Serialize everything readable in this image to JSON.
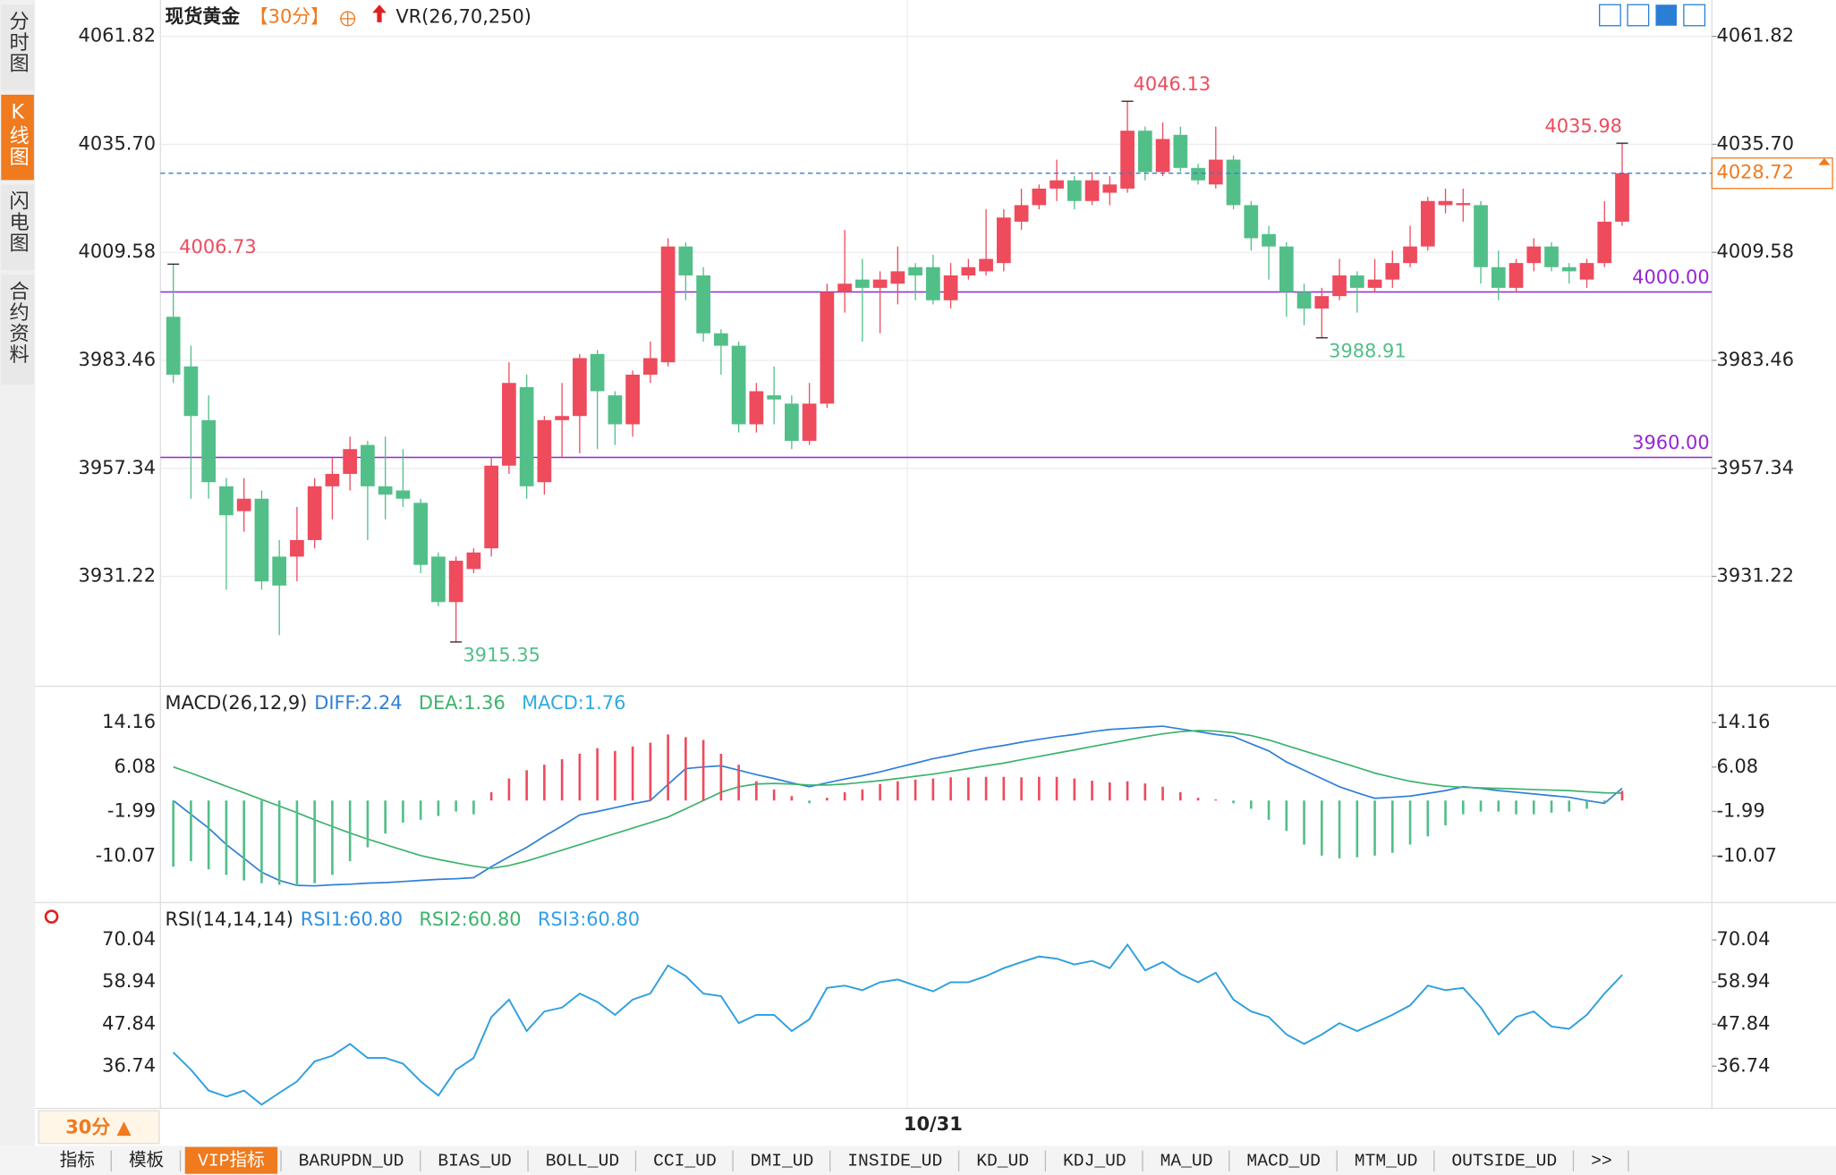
{
  "chart_data": [
    {
      "type": "candlestick",
      "title": "现货黄金",
      "period": "【30分】",
      "indicator": "VR(26,70,250)",
      "categories": [
        null,
        null,
        null,
        null,
        null,
        null,
        null,
        null,
        null,
        null,
        null,
        null,
        null,
        null,
        null,
        null,
        null,
        null,
        null,
        null,
        null,
        null,
        null,
        null,
        null,
        null,
        null,
        null,
        null,
        null,
        null,
        null,
        null,
        null,
        null,
        null,
        null,
        null,
        null,
        null,
        null,
        null,
        null,
        "10/31",
        null,
        null,
        null,
        null,
        null,
        null,
        null,
        null,
        null,
        null,
        null,
        null,
        null,
        null,
        null,
        null,
        null,
        null,
        null,
        null,
        null,
        null,
        null,
        null,
        null,
        null,
        null,
        null,
        null,
        null,
        null,
        null,
        null,
        null,
        null,
        null,
        null,
        null,
        null
      ],
      "open": [
        3994,
        3982,
        3969,
        3953,
        3947,
        3950,
        3936,
        3936,
        3940,
        3953,
        3956,
        3963,
        3953,
        3952,
        3949,
        3936,
        3925,
        3933,
        3938,
        3958,
        3977,
        3954,
        3969,
        3970,
        3985,
        3975,
        3968,
        3980,
        3983,
        4011,
        4004,
        3990,
        3987,
        3968,
        3975,
        3973,
        3964,
        3973,
        4000,
        4003,
        4001,
        4002,
        4006,
        4006,
        3998,
        4004,
        4005,
        4007,
        4017,
        4021,
        4025,
        4027,
        4022,
        4024,
        4025,
        4039,
        4029,
        4038,
        4030,
        4026,
        4032,
        4021,
        4014,
        4011,
        4000,
        3996,
        3999,
        4004,
        4001,
        4003,
        4007,
        4011,
        4021,
        4021,
        4021,
        4006,
        4001,
        4007,
        4011,
        4006,
        4003,
        4007,
        4017
      ],
      "high": [
        4006.73,
        3987,
        3975,
        3955,
        3955,
        3952,
        3940,
        3948,
        3955,
        3960,
        3965,
        3964,
        3965,
        3962,
        3950,
        3937,
        3936,
        3938,
        3960,
        3983,
        3980,
        3970,
        3978,
        3985,
        3986,
        3976,
        3981,
        3988,
        4013,
        4012,
        4006,
        3991,
        3988,
        3978,
        3982,
        3975,
        3978,
        4002,
        4015,
        4008,
        4005,
        4011,
        4007,
        4009,
        4007,
        4008,
        4020,
        4020,
        4025,
        4026,
        4032,
        4028,
        4029,
        4028,
        4046.13,
        4040,
        4041,
        4040,
        4031,
        4040,
        4033,
        4022,
        4016,
        4012,
        4002,
        4001,
        4008,
        4005,
        4008,
        4010,
        4016,
        4023,
        4025,
        4025,
        4022,
        4010,
        4008,
        4013,
        4012,
        4007,
        4008,
        4022,
        4035.98
      ],
      "low": [
        3978,
        3950,
        3950,
        3928,
        3942,
        3928,
        3917,
        3930,
        3938,
        3945,
        3952,
        3940,
        3945,
        3948,
        3932,
        3924,
        3915.35,
        3932,
        3936,
        3956,
        3950,
        3951,
        3960,
        3961,
        3962,
        3963,
        3965,
        3978,
        3982,
        3998,
        3988,
        3980,
        3966,
        3966,
        3968,
        3962,
        3963,
        3972,
        3995,
        3988,
        3990,
        3997,
        3998,
        3997,
        3996,
        4003,
        4004,
        4005,
        4015,
        4020,
        4022,
        4020,
        4021,
        4021,
        4024,
        4027,
        4028,
        4029,
        4026,
        4025,
        4020,
        4010,
        4003,
        3994,
        3992,
        3988.91,
        3998,
        3995,
        4000,
        4001,
        4006,
        4010,
        4019,
        4017,
        4002,
        3998,
        4000,
        4005,
        4005,
        4002,
        4001,
        4006,
        4016
      ],
      "close": [
        3980,
        3970,
        3954,
        3946,
        3950,
        3930,
        3929,
        3940,
        3953,
        3956,
        3962,
        3953,
        3951,
        3950,
        3934,
        3925,
        3935,
        3937,
        3958,
        3978,
        3953,
        3969,
        3970,
        3984,
        3976,
        3968,
        3980,
        3984,
        4011,
        4004,
        3990,
        3987,
        3968,
        3976,
        3974,
        3964,
        3973,
        4000,
        4002,
        4001,
        4003,
        4005,
        4004,
        3998,
        4004,
        4006,
        4008,
        4018,
        4021,
        4025,
        4027,
        4022,
        4027,
        4026,
        4039,
        4029,
        4037,
        4030,
        4027,
        4032,
        4021,
        4013,
        4011,
        4000,
        3996,
        3999,
        4004,
        4001,
        4003,
        4007,
        4011,
        4022,
        4022,
        4021.5,
        4006,
        4001,
        4007,
        4011,
        4006,
        4005,
        4007,
        4017,
        4028.72
      ],
      "up_color": "#ee4b5d",
      "down_color": "#52bf88",
      "high_labels": [
        0,
        54,
        82
      ],
      "low_labels": [
        16,
        65
      ],
      "levels": [
        {
          "value": 4000,
          "label": "4000.00"
        },
        {
          "value": 3960,
          "label": "3960.00"
        }
      ],
      "level_color": "#9526d6",
      "last_price_color": "#f07a1e",
      "last_line_color": "#3a7fd5",
      "ylim": [
        3905.2,
        4069.2
      ],
      "yticks": [
        4061.82,
        {
          "value": 4035.7,
          "label": "4035.70"
        },
        4009.58,
        3983.46,
        3957.34,
        3931.22
      ],
      "grid": true
    },
    {
      "type": "line",
      "title": "MACD(26,12,9)",
      "series": [
        {
          "name": "DIFF:2.24",
          "type": "line",
          "color": "#2f7fd8",
          "values": [
            0,
            -2.5,
            -5,
            -8,
            -10.5,
            -13,
            -14.5,
            -15.4,
            -15.5,
            -15.3,
            -15.2,
            -15,
            -14.9,
            -14.7,
            -14.5,
            -14.3,
            -14.2,
            -14,
            -12,
            -10.2,
            -8.5,
            -6.5,
            -4.6,
            -2.6,
            -2,
            -1.3,
            -0.6,
            0,
            2.9,
            5.8,
            6.1,
            6.3,
            5.5,
            4.7,
            4,
            3.2,
            2.5,
            3.2,
            3.9,
            4.5,
            5.2,
            6,
            6.8,
            7.6,
            8.2,
            8.9,
            9.5,
            10,
            10.6,
            11.1,
            11.6,
            12,
            12.5,
            12.9,
            13.1,
            13.3,
            13.5,
            13,
            12.5,
            12,
            11.6,
            10.3,
            9,
            7,
            5.5,
            4,
            2.5,
            1.4,
            0.4,
            0.6,
            0.8,
            1.3,
            1.8,
            2.5,
            2.2,
            1.8,
            1.5,
            1.2,
            0.9,
            0.6,
            0,
            -0.5,
            2.24
          ]
        },
        {
          "name": "DEA:1.36",
          "type": "line",
          "color": "#3cb36b",
          "values": [
            6.1,
            5,
            3.8,
            2.6,
            1.4,
            0.2,
            -1,
            -2.2,
            -3.5,
            -4.7,
            -5.9,
            -7,
            -8,
            -9,
            -10,
            -10.7,
            -11.3,
            -11.9,
            -12.3,
            -11.8,
            -11,
            -10,
            -9,
            -8,
            -7,
            -6,
            -5,
            -4,
            -3,
            -1.5,
            0,
            1.5,
            2.5,
            3,
            3.1,
            3,
            2.8,
            2.8,
            3,
            3.3,
            3.6,
            4,
            4.4,
            4.8,
            5.3,
            5.8,
            6.3,
            6.8,
            7.4,
            8,
            8.6,
            9.2,
            9.8,
            10.4,
            11,
            11.6,
            12.1,
            12.5,
            12.7,
            12.6,
            12.3,
            11.8,
            11,
            10,
            9,
            8,
            7,
            6,
            5,
            4.2,
            3.5,
            3,
            2.6,
            2.4,
            2.3,
            2.2,
            2.1,
            2,
            1.9,
            1.8,
            1.6,
            1.4,
            1.36
          ]
        },
        {
          "name": "MACD:1.76",
          "type": "bar",
          "color": "#33a9e0",
          "up_color": "#ee4b5d",
          "down_color": "#52bf88",
          "values": [
            -12,
            -11,
            -12.5,
            -13.5,
            -14.5,
            -15,
            -15.3,
            -15.5,
            -15,
            -13.5,
            -11,
            -8.5,
            -6,
            -4,
            -3.5,
            -2.8,
            -2,
            -2.5,
            1.5,
            4,
            5.5,
            6.5,
            7.5,
            8.5,
            9.5,
            9,
            9.8,
            10.5,
            12,
            11.5,
            11,
            8.5,
            6.5,
            3.5,
            2,
            0.8,
            -0.5,
            0.5,
            1.5,
            2,
            3,
            3.5,
            3.8,
            4,
            4.2,
            4.2,
            4.3,
            4.3,
            4.2,
            4.3,
            4.3,
            4,
            3.6,
            3.3,
            3.5,
            3.1,
            2.5,
            1.5,
            0.5,
            0.2,
            -0.5,
            -1.5,
            -3.5,
            -5.5,
            -8,
            -10,
            -10.5,
            -10.3,
            -10,
            -9.5,
            -8,
            -6.5,
            -4.5,
            -2.5,
            -2,
            -2,
            -2.5,
            -2.5,
            -2.2,
            -2,
            -1.5,
            -0.5,
            1.76
          ]
        }
      ],
      "ylim": [
        -18.1,
        20.1
      ],
      "yticks": [
        14.16,
        6.08,
        -1.99,
        -10.07
      ],
      "grid": false
    },
    {
      "type": "line",
      "title": "RSI(14,14,14)",
      "series": [
        {
          "name": "RSI1:60.80",
          "type": "line",
          "color": "#2f8fe0",
          "values": [
            40.4,
            35.8,
            30.3,
            28.7,
            30.3,
            26.6,
            29.7,
            32.7,
            38.0,
            39.5,
            42.6,
            38.9,
            38.9,
            37.4,
            32.7,
            29.0,
            35.8,
            38.9,
            49.7,
            54.3,
            46.0,
            51.2,
            52.2,
            55.9,
            53.7,
            50.3,
            54.3,
            55.9,
            63.3,
            60.5,
            55.9,
            55.2,
            48.1,
            50.3,
            50.3,
            46.0,
            49.1,
            57.4,
            58.0,
            56.8,
            58.9,
            59.6,
            58.0,
            56.5,
            58.9,
            58.9,
            60.5,
            62.6,
            64.2,
            65.7,
            65.1,
            63.6,
            64.5,
            62.6,
            68.8,
            62.0,
            64.2,
            61.1,
            58.9,
            61.4,
            54.3,
            51.2,
            49.7,
            45.1,
            42.6,
            45.1,
            48.1,
            46.0,
            48.1,
            50.3,
            52.8,
            58.0,
            56.8,
            57.4,
            52.2,
            45.1,
            49.7,
            51.2,
            47.2,
            46.6,
            50.3,
            55.9,
            60.8
          ]
        },
        {
          "name": "RSI2:60.80",
          "type": "line",
          "color": "#3cb36b",
          "values": [
            40.4,
            35.8,
            30.3,
            28.7,
            30.3,
            26.6,
            29.7,
            32.7,
            38.0,
            39.5,
            42.6,
            38.9,
            38.9,
            37.4,
            32.7,
            29.0,
            35.8,
            38.9,
            49.7,
            54.3,
            46.0,
            51.2,
            52.2,
            55.9,
            53.7,
            50.3,
            54.3,
            55.9,
            63.3,
            60.5,
            55.9,
            55.2,
            48.1,
            50.3,
            50.3,
            46.0,
            49.1,
            57.4,
            58.0,
            56.8,
            58.9,
            59.6,
            58.0,
            56.5,
            58.9,
            58.9,
            60.5,
            62.6,
            64.2,
            65.7,
            65.1,
            63.6,
            64.5,
            62.6,
            68.8,
            62.0,
            64.2,
            61.1,
            58.9,
            61.4,
            54.3,
            51.2,
            49.7,
            45.1,
            42.6,
            45.1,
            48.1,
            46.0,
            48.1,
            50.3,
            52.8,
            58.0,
            56.8,
            57.4,
            52.2,
            45.1,
            49.7,
            51.2,
            47.2,
            46.6,
            50.3,
            55.9,
            60.8
          ]
        },
        {
          "name": "RSI3:60.80",
          "type": "line",
          "color": "#2f9fe8",
          "values": [
            40.4,
            35.8,
            30.3,
            28.7,
            30.3,
            26.6,
            29.7,
            32.7,
            38.0,
            39.5,
            42.6,
            38.9,
            38.9,
            37.4,
            32.7,
            29.0,
            35.8,
            38.9,
            49.7,
            54.3,
            46.0,
            51.2,
            52.2,
            55.9,
            53.7,
            50.3,
            54.3,
            55.9,
            63.3,
            60.5,
            55.9,
            55.2,
            48.1,
            50.3,
            50.3,
            46.0,
            49.1,
            57.4,
            58.0,
            56.8,
            58.9,
            59.6,
            58.0,
            56.5,
            58.9,
            58.9,
            60.5,
            62.6,
            64.2,
            65.7,
            65.1,
            63.6,
            64.5,
            62.6,
            68.8,
            62.0,
            64.2,
            61.1,
            58.9,
            61.4,
            54.3,
            51.2,
            49.7,
            45.1,
            42.6,
            45.1,
            48.1,
            46.0,
            48.1,
            50.3,
            52.8,
            58.0,
            56.8,
            57.4,
            52.2,
            45.1,
            49.7,
            51.2,
            47.2,
            46.6,
            50.3,
            55.9,
            60.8
          ]
        }
      ],
      "ylim": [
        25.0,
        78.98
      ],
      "yticks": [
        70.04,
        58.94,
        47.84,
        36.74
      ],
      "grid": false
    }
  ],
  "ui": {
    "sidebar": [
      "分时图",
      "K线图",
      "闪电图",
      "合约资料"
    ],
    "sidebar_active": 1,
    "period_button": "30分 ▲",
    "tabs": [
      "指标",
      "模板",
      "VIP指标",
      "BARUPDN_UD",
      "BIAS_UD",
      "BOLL_UD",
      "CCI_UD",
      "DMI_UD",
      "INSIDE_UD",
      "KD_UD",
      "KDJ_UD",
      "MA_UD",
      "MACD_UD",
      "MTM_UD",
      "OUTSIDE_UD",
      ">>"
    ],
    "tabs_active": 2
  }
}
